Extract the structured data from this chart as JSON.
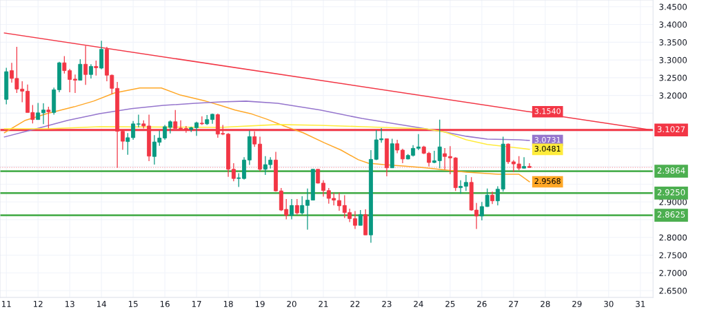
{
  "chart_data": {
    "type": "candlestick",
    "x": [
      11,
      11.17,
      11.33,
      11.5,
      11.67,
      11.83,
      12,
      12.17,
      12.33,
      12.5,
      12.67,
      12.83,
      13,
      13.17,
      13.33,
      13.5,
      13.67,
      13.83,
      14,
      14.17,
      14.33,
      14.5,
      14.67,
      14.83,
      15,
      15.17,
      15.33,
      15.5,
      15.67,
      15.83,
      16,
      16.17,
      16.33,
      16.5,
      16.67,
      16.83,
      17,
      17.17,
      17.33,
      17.5,
      17.67,
      17.83,
      18,
      18.17,
      18.33,
      18.5,
      18.67,
      18.83,
      19,
      19.17,
      19.33,
      19.5,
      19.67,
      19.83,
      20,
      20.17,
      20.33,
      20.5,
      20.67,
      20.83,
      21,
      21.17,
      21.33,
      21.5,
      21.67,
      21.83,
      22,
      22.17,
      22.33,
      22.5,
      22.67,
      22.83,
      23,
      23.17,
      23.33,
      23.5,
      23.67,
      23.83,
      24,
      24.17,
      24.33,
      24.5,
      24.67,
      24.83,
      25,
      25.17,
      25.33,
      25.5,
      25.67,
      25.83,
      26,
      26.17,
      26.33,
      26.5,
      26.67,
      26.83,
      27,
      27.17,
      27.33,
      27.5
    ],
    "ohlc": [
      [
        3.189,
        3.278,
        3.175,
        3.267
      ],
      [
        3.27,
        3.292,
        3.236,
        3.248
      ],
      [
        3.248,
        3.337,
        3.207,
        3.218
      ],
      [
        3.218,
        3.24,
        3.181,
        3.212
      ],
      [
        3.212,
        3.231,
        3.152,
        3.152
      ],
      [
        3.152,
        3.173,
        3.121,
        3.132
      ],
      [
        3.132,
        3.179,
        3.132,
        3.151
      ],
      [
        3.151,
        3.178,
        3.119,
        3.159
      ],
      [
        3.159,
        3.168,
        3.107,
        3.154
      ],
      [
        3.152,
        3.222,
        3.146,
        3.216
      ],
      [
        3.216,
        3.295,
        3.209,
        3.292
      ],
      [
        3.292,
        3.311,
        3.262,
        3.27
      ],
      [
        3.27,
        3.275,
        3.209,
        3.245
      ],
      [
        3.246,
        3.259,
        3.207,
        3.243
      ],
      [
        3.243,
        3.302,
        3.243,
        3.288
      ],
      [
        3.288,
        3.34,
        3.23,
        3.259
      ],
      [
        3.259,
        3.288,
        3.248,
        3.282
      ],
      [
        3.282,
        3.298,
        3.256,
        3.278
      ],
      [
        3.277,
        3.354,
        3.274,
        3.33
      ],
      [
        3.33,
        3.337,
        3.24,
        3.257
      ],
      [
        3.257,
        3.259,
        3.204,
        3.22
      ],
      [
        3.22,
        3.238,
        2.996,
        3.099
      ],
      [
        3.099,
        3.101,
        3.047,
        3.071
      ],
      [
        3.07,
        3.094,
        3.033,
        3.081
      ],
      [
        3.081,
        3.128,
        3.075,
        3.12
      ],
      [
        3.119,
        3.146,
        3.11,
        3.12
      ],
      [
        3.12,
        3.13,
        3.107,
        3.114
      ],
      [
        3.114,
        3.146,
        3.015,
        3.029
      ],
      [
        3.028,
        3.088,
        3.005,
        3.069
      ],
      [
        3.068,
        3.101,
        3.058,
        3.08
      ],
      [
        3.08,
        3.117,
        3.075,
        3.112
      ],
      [
        3.11,
        3.13,
        3.093,
        3.126
      ],
      [
        3.126,
        3.159,
        3.107,
        3.107
      ],
      [
        3.108,
        3.13,
        3.104,
        3.106
      ],
      [
        3.107,
        3.114,
        3.095,
        3.102
      ],
      [
        3.104,
        3.112,
        3.097,
        3.109
      ],
      [
        3.109,
        3.126,
        3.086,
        3.123
      ],
      [
        3.122,
        3.141,
        3.117,
        3.12
      ],
      [
        3.12,
        3.145,
        3.117,
        3.132
      ],
      [
        3.132,
        3.149,
        3.12,
        3.147
      ],
      [
        3.146,
        3.149,
        3.081,
        3.091
      ],
      [
        3.093,
        3.117,
        3.088,
        3.091
      ],
      [
        3.091,
        3.094,
        2.971,
        2.992
      ],
      [
        2.992,
        3.009,
        2.958,
        2.966
      ],
      [
        2.966,
        2.981,
        2.942,
        2.968
      ],
      [
        2.966,
        3.026,
        2.963,
        3.018
      ],
      [
        3.018,
        3.101,
        3.004,
        3.084
      ],
      [
        3.084,
        3.099,
        3.055,
        3.063
      ],
      [
        3.063,
        3.084,
        2.987,
        2.992
      ],
      [
        2.992,
        3.029,
        2.976,
        3.005
      ],
      [
        3.005,
        3.026,
        2.994,
        3.018
      ],
      [
        3.018,
        3.041,
        2.929,
        2.931
      ],
      [
        2.931,
        2.939,
        2.874,
        2.877
      ],
      [
        2.879,
        2.908,
        2.851,
        2.862
      ],
      [
        2.862,
        2.908,
        2.851,
        2.89
      ],
      [
        2.89,
        2.908,
        2.864,
        2.869
      ],
      [
        2.869,
        2.916,
        2.864,
        2.89
      ],
      [
        2.89,
        2.938,
        2.822,
        2.905
      ],
      [
        2.905,
        2.992,
        2.905,
        2.992
      ],
      [
        2.992,
        2.992,
        2.952,
        2.953
      ],
      [
        2.953,
        2.961,
        2.915,
        2.932
      ],
      [
        2.932,
        2.939,
        2.895,
        2.91
      ],
      [
        2.91,
        2.926,
        2.89,
        2.905
      ],
      [
        2.904,
        2.926,
        2.875,
        2.889
      ],
      [
        2.89,
        2.919,
        2.855,
        2.87
      ],
      [
        2.87,
        2.881,
        2.843,
        2.853
      ],
      [
        2.853,
        2.874,
        2.824,
        2.834
      ],
      [
        2.834,
        2.877,
        2.834,
        2.864
      ],
      [
        2.864,
        2.879,
        2.807,
        2.807
      ],
      [
        2.807,
        3.046,
        2.785,
        3.02
      ],
      [
        3.02,
        3.102,
        3.018,
        3.075
      ],
      [
        3.075,
        3.108,
        3.067,
        3.078
      ],
      [
        3.078,
        3.078,
        2.972,
        2.996
      ],
      [
        2.996,
        3.078,
        2.996,
        3.064
      ],
      [
        3.064,
        3.075,
        3.037,
        3.046
      ],
      [
        3.046,
        3.05,
        3.009,
        3.021
      ],
      [
        3.021,
        3.035,
        3.02,
        3.031
      ],
      [
        3.031,
        3.06,
        3.028,
        3.051
      ],
      [
        3.051,
        3.091,
        3.046,
        3.055
      ],
      [
        3.055,
        3.058,
        3.035,
        3.037
      ],
      [
        3.037,
        3.041,
        3.0,
        3.011
      ],
      [
        3.011,
        3.044,
        3.009,
        3.016
      ],
      [
        3.016,
        3.132,
        2.995,
        3.055
      ],
      [
        3.036,
        3.052,
        2.991,
        3.028
      ],
      [
        3.028,
        3.057,
        2.978,
        3.024
      ],
      [
        3.024,
        3.026,
        2.931,
        2.94
      ],
      [
        2.94,
        2.961,
        2.923,
        2.944
      ],
      [
        2.944,
        2.976,
        2.931,
        2.955
      ],
      [
        2.955,
        2.97,
        2.875,
        2.877
      ],
      [
        2.877,
        2.897,
        2.824,
        2.86
      ],
      [
        2.86,
        2.9,
        2.848,
        2.887
      ],
      [
        2.887,
        2.938,
        2.886,
        2.919
      ],
      [
        2.919,
        2.929,
        2.894,
        2.903
      ],
      [
        2.903,
        2.944,
        2.89,
        2.936
      ],
      [
        2.936,
        3.084,
        2.929,
        3.063
      ],
      [
        3.063,
        3.065,
        3.007,
        3.013
      ],
      [
        3.013,
        3.018,
        2.984,
        3.007
      ],
      [
        3.007,
        3.029,
        2.989,
        2.995
      ],
      [
        2.995,
        3.026,
        2.994,
        3.0
      ],
      [
        3.0,
        3.009,
        2.996,
        2.997
      ]
    ],
    "colors": [
      "#089981",
      "#f23645",
      "#f23645",
      "#f23645",
      "#f23645",
      "#f23645",
      "#089981",
      "#089981",
      "#f23645",
      "#089981",
      "#089981",
      "#f23645",
      "#f23645",
      "#f23645",
      "#089981",
      "#f23645",
      "#089981",
      "#f23645",
      "#089981",
      "#f23645",
      "#f23645",
      "#f23645",
      "#f23645",
      "#089981",
      "#089981",
      "#089981",
      "#f23645",
      "#f23645",
      "#089981",
      "#089981",
      "#089981",
      "#089981",
      "#f23645",
      "#f23645",
      "#f23645",
      "#089981",
      "#089981",
      "#f23645",
      "#089981",
      "#089981",
      "#f23645",
      "#f23645",
      "#f23645",
      "#f23645",
      "#089981",
      "#089981",
      "#089981",
      "#f23645",
      "#f23645",
      "#089981",
      "#089981",
      "#f23645",
      "#f23645",
      "#f23645",
      "#089981",
      "#f23645",
      "#089981",
      "#089981",
      "#089981",
      "#f23645",
      "#f23645",
      "#f23645",
      "#f23645",
      "#f23645",
      "#f23645",
      "#f23645",
      "#f23645",
      "#089981",
      "#f23645",
      "#089981",
      "#089981",
      "#089981",
      "#f23645",
      "#089981",
      "#f23645",
      "#f23645",
      "#089981",
      "#089981",
      "#089981",
      "#f23645",
      "#f23645",
      "#089981",
      "#089981",
      "#f23645",
      "#f23645",
      "#f23645",
      "#089981",
      "#089981",
      "#f23645",
      "#f23645",
      "#089981",
      "#089981",
      "#f23645",
      "#089981",
      "#089981",
      "#f23645",
      "#f23645",
      "#f23645",
      "#089981",
      "#f23645"
    ],
    "series": [
      {
        "type": "line",
        "color": "#ffa726",
        "x": [
          10.94,
          11.6,
          12.28,
          13.14,
          13.75,
          14.41,
          15.21,
          15.89,
          16.49,
          17.29,
          17.75,
          18.21,
          18.7,
          19.22,
          19.76,
          20.36,
          21.02,
          21.56,
          22.1,
          22.42,
          22.9,
          23.57,
          24.23,
          24.83,
          25.51,
          26.17,
          26.51,
          27.17,
          27.5
        ],
        "values": [
          3.095,
          3.13,
          3.149,
          3.168,
          3.184,
          3.207,
          3.221,
          3.221,
          3.201,
          3.184,
          3.172,
          3.159,
          3.149,
          3.133,
          3.114,
          3.095,
          3.067,
          3.046,
          3.019,
          3.009,
          3.005,
          3.001,
          2.996,
          2.99,
          2.984,
          2.98,
          2.978,
          2.978,
          2.9568
        ],
        "value_labels": [
          null,
          null,
          null,
          null,
          null,
          null,
          null,
          null,
          null,
          null,
          null,
          null,
          null,
          null,
          null,
          null,
          null,
          null,
          null,
          null,
          null,
          null,
          null,
          null,
          null,
          null,
          null,
          null,
          "2.9568"
        ]
      },
      {
        "type": "line",
        "color": "#9575cd",
        "x": [
          10.94,
          11.94,
          12.94,
          13.95,
          14.95,
          15.95,
          16.95,
          17.75,
          18.56,
          19.56,
          20.9,
          22.22,
          24.23,
          24.83,
          25.51,
          26.17,
          27.17,
          27.5
        ],
        "values": [
          3.083,
          3.106,
          3.13,
          3.149,
          3.163,
          3.172,
          3.178,
          3.182,
          3.184,
          3.178,
          3.159,
          3.135,
          3.106,
          3.097,
          3.085,
          3.077,
          3.075,
          3.0731
        ],
        "value_labels": [
          null,
          null,
          null,
          null,
          null,
          null,
          null,
          null,
          null,
          null,
          null,
          null,
          null,
          null,
          null,
          null,
          null,
          "3.0731"
        ]
      },
      {
        "type": "line",
        "color": "#ffeb3b",
        "x": [
          10.94,
          12.28,
          13.95,
          17.75,
          19.56,
          20.9,
          22.22,
          24.23,
          24.83,
          25.51,
          26.17,
          27.17,
          27.5
        ],
        "values": [
          3.106,
          3.106,
          3.112,
          3.11,
          3.118,
          3.116,
          3.112,
          3.106,
          3.097,
          3.075,
          3.062,
          3.052,
          3.0481
        ],
        "value_labels": [
          null,
          null,
          null,
          null,
          null,
          null,
          null,
          null,
          null,
          null,
          null,
          null,
          "3.0481"
        ]
      },
      {
        "type": "line",
        "color": "#f23645",
        "x": [
          10.94,
          27.5,
          31.4
        ],
        "values": [
          3.376,
          3.154,
          3.102
        ],
        "value_labels": [
          null,
          "3.1540",
          null
        ]
      }
    ],
    "ref_lines": [
      {
        "axis": "y",
        "value": 3.1027,
        "label": "3.1027",
        "color": "#f23645",
        "line_style": "solid"
      },
      {
        "axis": "y",
        "value": 2.9864,
        "label": "2.9864",
        "color": "#4caf50",
        "line_style": "solid"
      },
      {
        "axis": "y",
        "value": 2.925,
        "label": "2.9250",
        "color": "#4caf50",
        "line_style": "solid"
      },
      {
        "axis": "y",
        "value": 2.8625,
        "label": "2.8625",
        "color": "#4caf50",
        "line_style": "solid"
      },
      {
        "axis": "y",
        "value": 2.997,
        "label": null,
        "color": "#f7a1a8",
        "line_style": "dotted"
      }
    ],
    "xlim": [
      10.8,
      31.4
    ],
    "xticks": [
      11,
      12,
      13,
      14,
      15,
      16,
      17,
      18,
      19,
      20,
      21,
      22,
      23,
      24,
      25,
      26,
      27,
      28,
      29,
      30,
      31
    ],
    "ylim": [
      2.631,
      3.469
    ],
    "yticks": [
      {
        "value": 2.65,
        "label": "2.6500"
      },
      {
        "value": 2.7,
        "label": "2.7000"
      },
      {
        "value": 2.75,
        "label": "2.7500"
      },
      {
        "value": 2.8,
        "label": "2.8000"
      },
      {
        "value": 2.85,
        "label": null
      },
      {
        "value": 2.9,
        "label": "2.9000"
      },
      {
        "value": 2.95,
        "label": null
      },
      {
        "value": 3.0,
        "label": null
      },
      {
        "value": 3.05,
        "label": null
      },
      {
        "value": 3.1,
        "label": null
      },
      {
        "value": 3.15,
        "label": null
      },
      {
        "value": 3.2,
        "label": "3.2000"
      },
      {
        "value": 3.25,
        "label": "3.2500"
      },
      {
        "value": 3.3,
        "label": "3.3000"
      },
      {
        "value": 3.35,
        "label": "3.3500"
      },
      {
        "value": 3.4,
        "label": "3.4000"
      },
      {
        "value": 3.45,
        "label": "3.4500"
      }
    ],
    "grid": true
  }
}
